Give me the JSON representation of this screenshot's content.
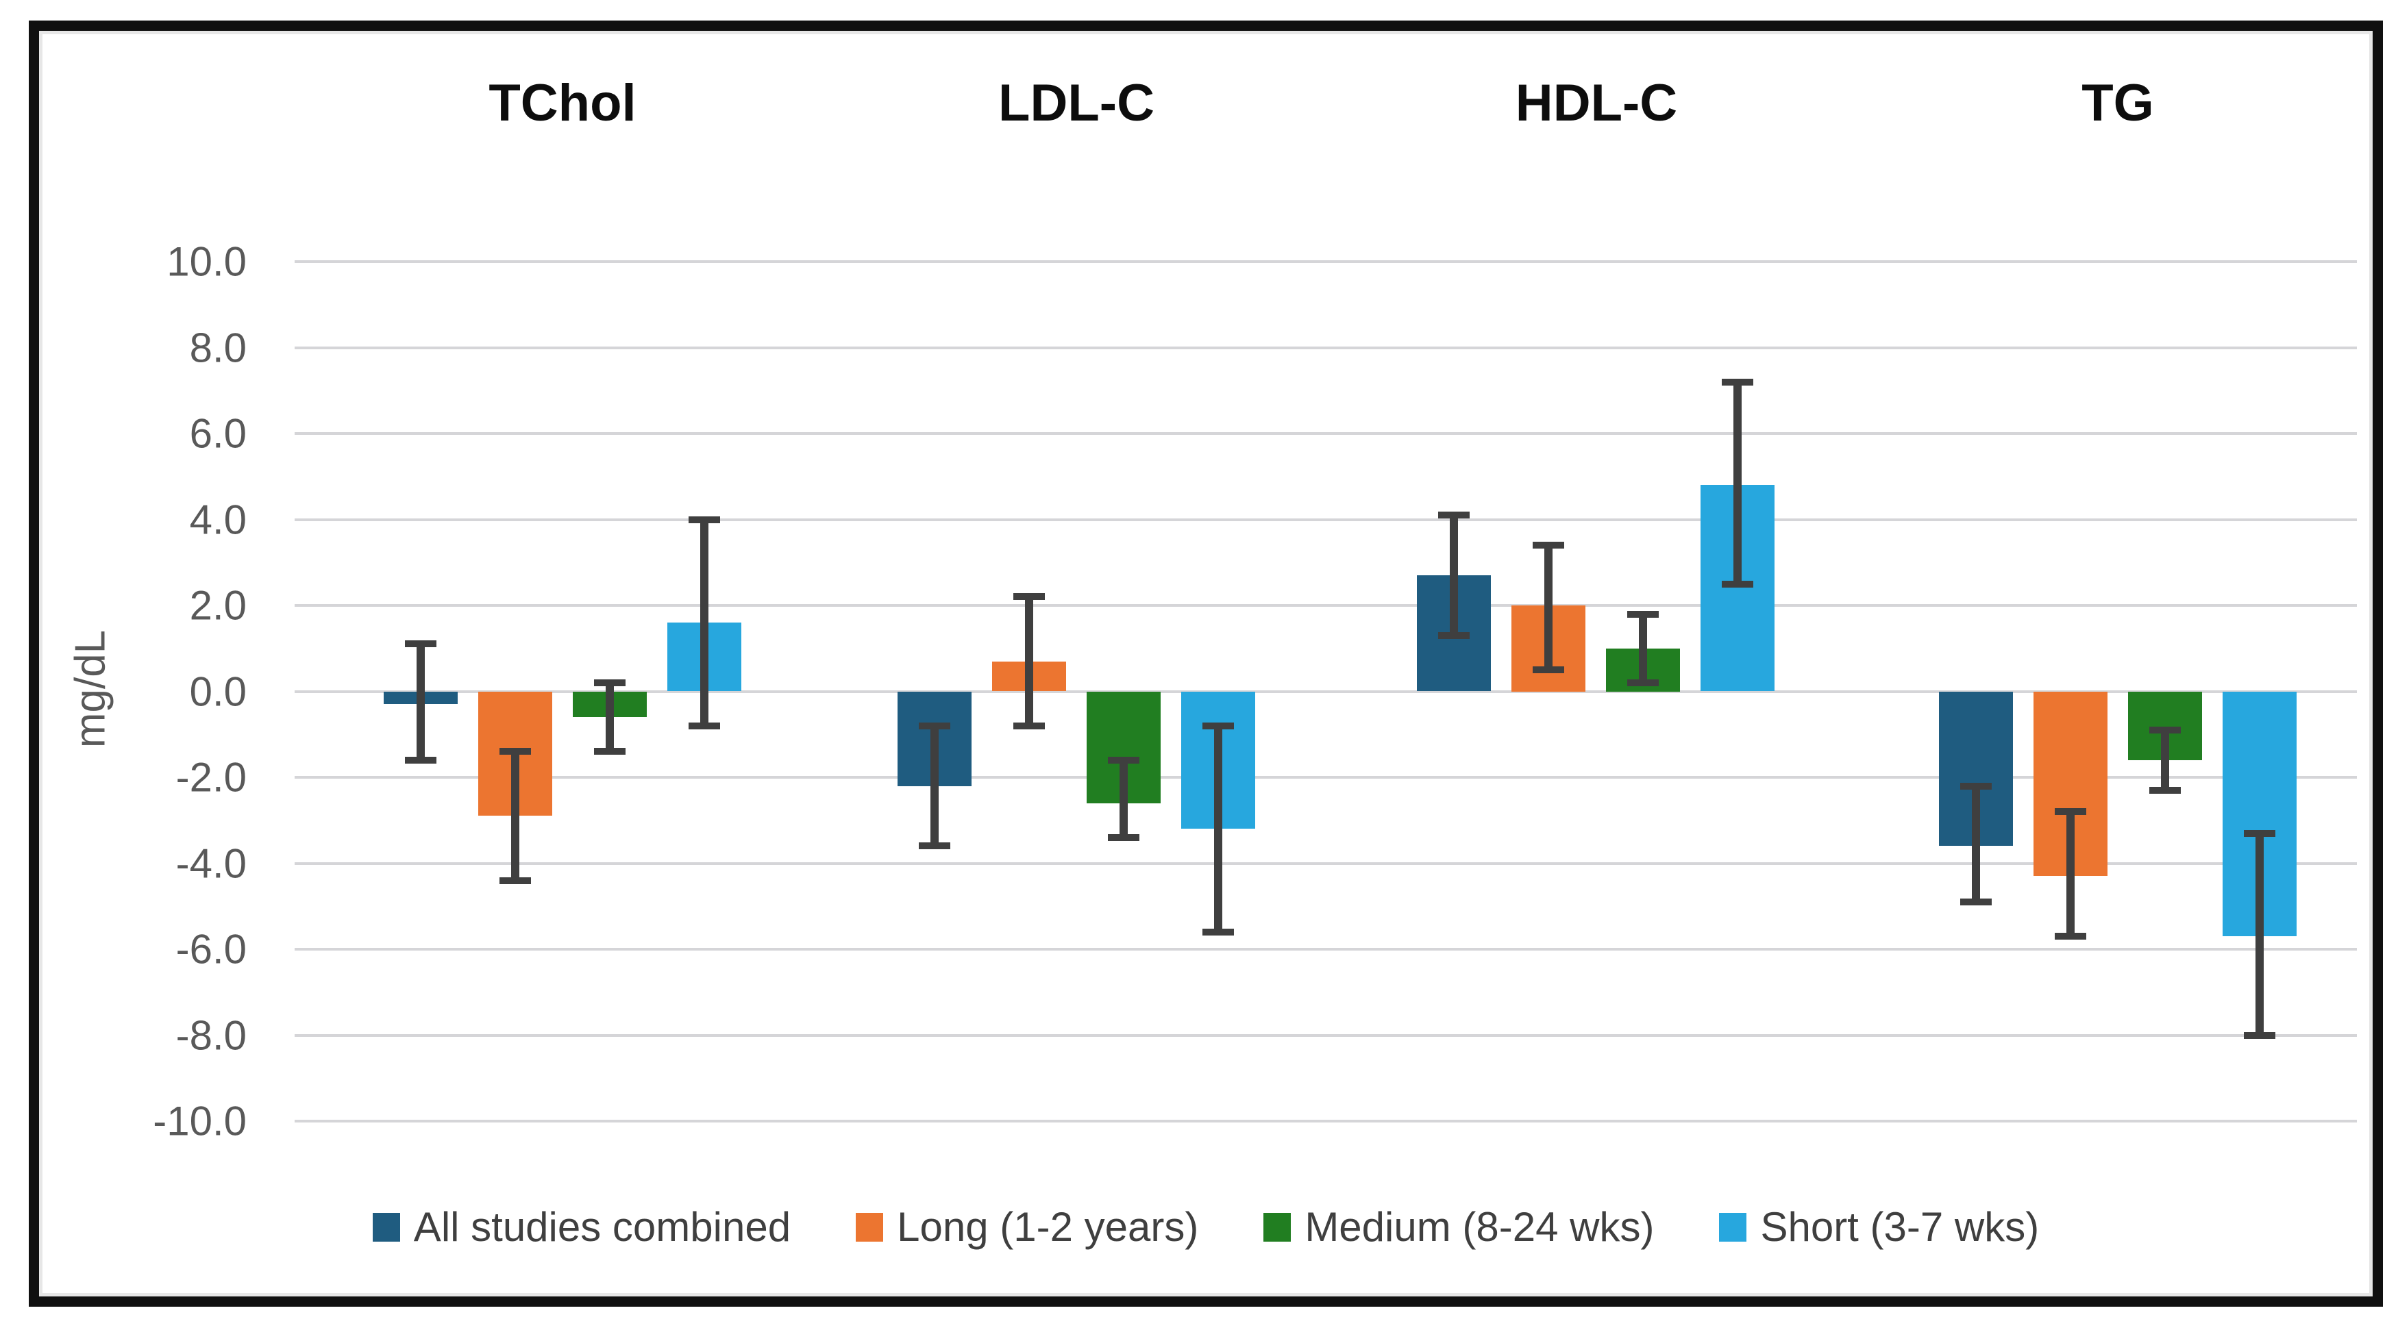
{
  "chart_data": {
    "type": "bar",
    "title": "",
    "ylabel": "mg/dL",
    "xlabel": "",
    "ylim": [
      -10,
      10
    ],
    "ytick_step": 2,
    "ytick_labels": [
      "10.0",
      "8.0",
      "6.0",
      "4.0",
      "2.0",
      "0.0",
      "-2.0",
      "-4.0",
      "-6.0",
      "-8.0",
      "-10.0"
    ],
    "categories": [
      "TChol",
      "LDL-C",
      "HDL-C",
      "TG"
    ],
    "series": [
      {
        "name": "All studies combined",
        "color": "#1F5C80",
        "values": [
          -0.3,
          -2.2,
          2.7,
          -3.6
        ],
        "error_low": [
          -1.6,
          -3.6,
          1.3,
          -4.9
        ],
        "error_high": [
          1.1,
          -0.8,
          4.1,
          -2.2
        ]
      },
      {
        "name": "Long (1-2 years)",
        "color": "#EC7530",
        "values": [
          -2.9,
          0.7,
          2.0,
          -4.3
        ],
        "error_low": [
          -4.4,
          -0.8,
          0.5,
          -5.7
        ],
        "error_high": [
          -1.4,
          2.2,
          3.4,
          -2.8
        ]
      },
      {
        "name": "Medium (8-24 wks)",
        "color": "#217E21",
        "values": [
          -0.6,
          -2.6,
          1.0,
          -1.6
        ],
        "error_low": [
          -1.4,
          -3.4,
          0.2,
          -2.3
        ],
        "error_high": [
          0.2,
          -1.6,
          1.8,
          -0.9
        ]
      },
      {
        "name": "Short (3-7 wks)",
        "color": "#27A7DE",
        "values": [
          1.6,
          -3.2,
          4.8,
          -5.7
        ],
        "error_low": [
          -0.8,
          -5.6,
          2.5,
          -8.0
        ],
        "error_high": [
          4.0,
          -0.8,
          7.2,
          -3.3
        ]
      }
    ],
    "grid": true,
    "gridline_color": "#d5d5d8",
    "error_bar_color": "#3f3f3f",
    "tick_label_color": "#595959",
    "legend_position": "bottom"
  }
}
